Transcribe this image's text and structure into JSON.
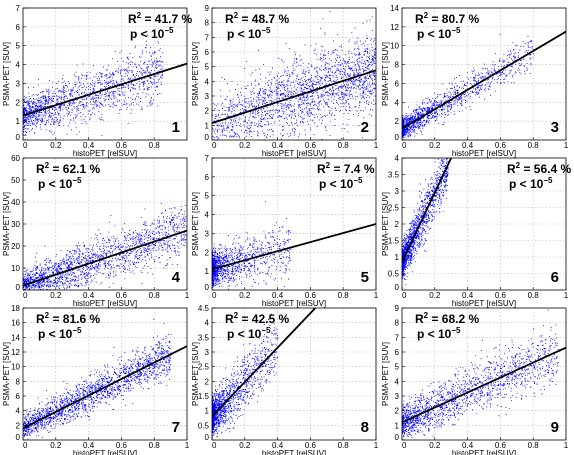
{
  "chart_data": [
    {
      "type": "scatter",
      "panel_label": "1",
      "r2_text": "41.7 %",
      "p_text": "p < 10",
      "p_exp": "−5",
      "xlabel": "histoPET [relSUV]",
      "ylabel": "PSMA-PET [SUV]",
      "xlim": [
        0,
        1
      ],
      "ylim": [
        0,
        7
      ],
      "xticks": [
        0,
        0.2,
        0.4,
        0.6,
        0.8
      ],
      "yticks": [
        0,
        1,
        2,
        3,
        4,
        5,
        6,
        7
      ],
      "xtick_labels": [
        "0",
        "0.2",
        "0.4",
        "0.6",
        "0.8"
      ],
      "ytick_labels": [
        "0",
        "1",
        "2",
        "3",
        "4",
        "5",
        "6",
        "7"
      ],
      "fit": {
        "x": [
          0,
          1
        ],
        "y": [
          1.3,
          4.05
        ]
      },
      "cloud": {
        "x_max": 0.85,
        "x_shape": 1.5,
        "y_sd": 0.65,
        "n": 1500
      },
      "grid": true,
      "color": "#0000ff"
    },
    {
      "type": "scatter",
      "panel_label": "2",
      "r2_text": "48.7 %",
      "p_text": "p < 10",
      "p_exp": "−5",
      "xlabel": "histoPET [relSUV]",
      "ylabel": "PSMA-PET [SUV]",
      "xlim": [
        0,
        1
      ],
      "ylim": [
        0,
        9
      ],
      "xticks": [
        0,
        0.2,
        0.4,
        0.6,
        0.8,
        1
      ],
      "yticks": [
        0,
        1,
        2,
        3,
        4,
        5,
        6,
        7,
        8,
        9
      ],
      "xtick_labels": [
        "0",
        "0.2",
        "0.4",
        "0.6",
        "0.8",
        "1"
      ],
      "ytick_labels": [
        "0",
        "1",
        "2",
        "3",
        "4",
        "5",
        "6",
        "7",
        "8",
        "9"
      ],
      "fit": {
        "x": [
          0,
          1
        ],
        "y": [
          1.15,
          4.75
        ]
      },
      "cloud": {
        "x_max": 1.0,
        "x_shape": 0.75,
        "y_sd": 1.2,
        "n": 2000
      },
      "grid": true,
      "color": "#0000ff"
    },
    {
      "type": "scatter",
      "panel_label": "3",
      "r2_text": "80.7 %",
      "p_text": "p < 10",
      "p_exp": "−5",
      "xlabel": "histoPET [relSUV]",
      "ylabel": "PSMA-PET [SUV]",
      "xlim": [
        0,
        1
      ],
      "ylim": [
        0,
        14
      ],
      "xticks": [
        0,
        0.2,
        0.4,
        0.6,
        0.8,
        1
      ],
      "yticks": [
        0,
        2,
        4,
        6,
        8,
        10,
        12,
        14
      ],
      "xtick_labels": [
        "0",
        "0.2",
        "0.4",
        "0.6",
        "0.8",
        "1"
      ],
      "ytick_labels": [
        "0",
        "2",
        "4",
        "6",
        "8",
        "10",
        "12",
        "14"
      ],
      "fit": {
        "x": [
          0,
          1
        ],
        "y": [
          1.2,
          11.5
        ]
      },
      "cloud": {
        "x_max": 0.8,
        "x_shape": 2.6,
        "y_sd": 0.8,
        "n": 1500
      },
      "grid": true,
      "color": "#0000ff"
    },
    {
      "type": "scatter",
      "panel_label": "4",
      "r2_text": "62.1 %",
      "p_text": "p < 10",
      "p_exp": "−5",
      "xlabel": "histoPET [relSUV]",
      "ylabel": "PSMA-PET [SUV]",
      "xlim": [
        0,
        1
      ],
      "ylim": [
        0,
        60
      ],
      "xticks": [
        0,
        0.2,
        0.4,
        0.6,
        0.8,
        1
      ],
      "yticks": [
        0,
        10,
        20,
        30,
        40,
        50,
        60
      ],
      "xtick_labels": [
        "0",
        "0.2",
        "0.4",
        "0.6",
        "0.8",
        "1"
      ],
      "ytick_labels": [
        "0",
        "10",
        "20",
        "30",
        "40",
        "50",
        "60"
      ],
      "fit": {
        "x": [
          0,
          1
        ],
        "y": [
          2,
          27
        ]
      },
      "cloud": {
        "x_max": 1.0,
        "x_shape": 1.2,
        "y_sd": 5,
        "n": 1800
      },
      "grid": true,
      "color": "#0000ff"
    },
    {
      "type": "scatter",
      "panel_label": "5",
      "r2_text": "7.4 %",
      "p_text": "p < 10",
      "p_exp": "−5",
      "xlabel": "histoPET [relSUV]",
      "ylabel": "PSMA-PET [SUV]",
      "xlim": [
        0,
        1
      ],
      "ylim": [
        0,
        7
      ],
      "xticks": [
        0,
        0.2,
        0.4,
        0.6,
        0.8,
        1
      ],
      "yticks": [
        0,
        1,
        2,
        3,
        4,
        5,
        6,
        7
      ],
      "xtick_labels": [
        "0",
        "0.2",
        "0.4",
        "0.6",
        "0.8",
        "1"
      ],
      "ytick_labels": [
        "0",
        "1",
        "2",
        "3",
        "4",
        "5",
        "6",
        "7"
      ],
      "fit": {
        "x": [
          0,
          1
        ],
        "y": [
          1.1,
          3.5
        ]
      },
      "cloud": {
        "x_max": 0.48,
        "x_shape": 3.5,
        "y_sd": 0.6,
        "n": 1500
      },
      "grid": true,
      "color": "#0000ff"
    },
    {
      "type": "scatter",
      "panel_label": "6",
      "r2_text": "56.4 %",
      "p_text": "p < 10",
      "p_exp": "−5",
      "xlabel": "histoPET [relSUV]",
      "ylabel": "PSMA-PET [SUV]",
      "xlim": [
        0,
        1
      ],
      "ylim": [
        0,
        4
      ],
      "xticks": [
        0,
        0.2,
        0.4,
        0.6,
        0.8,
        1
      ],
      "yticks": [
        0,
        0.5,
        1,
        1.5,
        2,
        2.5,
        3,
        3.5,
        4
      ],
      "xtick_labels": [
        "0",
        "0.2",
        "0.4",
        "0.6",
        "0.8",
        "1"
      ],
      "ytick_labels": [
        "0",
        "0.5",
        "1",
        "1.5",
        "2",
        "2.5",
        "3",
        "3.5",
        "4"
      ],
      "fit": {
        "x": [
          0,
          0.3
        ],
        "y": [
          0.85,
          4
        ]
      },
      "cloud": {
        "x_max": 0.28,
        "x_shape": 1.8,
        "y_sd": 0.35,
        "n": 1500
      },
      "grid": true,
      "color": "#0000ff"
    },
    {
      "type": "scatter",
      "panel_label": "7",
      "r2_text": "81.6 %",
      "p_text": "p < 10",
      "p_exp": "−5",
      "xlabel": "histoPET [relSUV]",
      "ylabel": "PSMA-PET [SUV]",
      "xlim": [
        0,
        1
      ],
      "ylim": [
        0,
        18
      ],
      "xticks": [
        0,
        0.2,
        0.4,
        0.6,
        0.8,
        1
      ],
      "yticks": [
        0,
        2,
        4,
        6,
        8,
        10,
        12,
        14,
        16,
        18
      ],
      "xtick_labels": [
        "0",
        "0.2",
        "0.4",
        "0.6",
        "0.8",
        "1"
      ],
      "ytick_labels": [
        "0",
        "2",
        "4",
        "6",
        "8",
        "10",
        "12",
        "14",
        "16",
        "18"
      ],
      "fit": {
        "x": [
          0,
          1
        ],
        "y": [
          1.6,
          12.8
        ]
      },
      "cloud": {
        "x_max": 0.9,
        "x_shape": 1.1,
        "y_sd": 1.2,
        "n": 1800
      },
      "grid": true,
      "color": "#0000ff"
    },
    {
      "type": "scatter",
      "panel_label": "8",
      "r2_text": "42.5 %",
      "p_text": "p < 10",
      "p_exp": "−5",
      "xlabel": "histoPET [relSUV]",
      "ylabel": "PSMA-PET [SUV]",
      "xlim": [
        0,
        1
      ],
      "ylim": [
        0,
        4.5
      ],
      "xticks": [
        0,
        0.2,
        0.4,
        0.6,
        0.8,
        1
      ],
      "yticks": [
        0,
        0.5,
        1,
        1.5,
        2,
        2.5,
        3,
        3.5,
        4,
        4.5
      ],
      "xtick_labels": [
        "0",
        "0.2",
        "0.4",
        "0.6",
        "0.8",
        "1"
      ],
      "ytick_labels": [
        "0",
        "0.5",
        "1",
        "1.5",
        "2",
        "2.5",
        "3",
        "3.5",
        "4",
        "4.5"
      ],
      "fit": {
        "x": [
          0,
          0.63
        ],
        "y": [
          0.8,
          4.5
        ]
      },
      "cloud": {
        "x_max": 0.4,
        "x_shape": 3.0,
        "y_sd": 0.45,
        "n": 1600
      },
      "grid": true,
      "color": "#0000ff"
    },
    {
      "type": "scatter",
      "panel_label": "9",
      "r2_text": "68.2 %",
      "p_text": "p < 10",
      "p_exp": "−5",
      "xlabel": "histoPET [relSUV]",
      "ylabel": "PSMA-PET [SUV]",
      "xlim": [
        0,
        1
      ],
      "ylim": [
        0,
        9
      ],
      "xticks": [
        0,
        0.2,
        0.4,
        0.6,
        0.8,
        1
      ],
      "yticks": [
        0,
        1,
        2,
        3,
        4,
        5,
        6,
        7,
        8,
        9
      ],
      "xtick_labels": [
        "0",
        "0.2",
        "0.4",
        "0.6",
        "0.8",
        "1"
      ],
      "ytick_labels": [
        "0",
        "1",
        "2",
        "3",
        "4",
        "5",
        "6",
        "7",
        "8",
        "9"
      ],
      "fit": {
        "x": [
          0,
          1
        ],
        "y": [
          1.2,
          6.3
        ]
      },
      "cloud": {
        "x_max": 0.95,
        "x_shape": 1.5,
        "y_sd": 0.8,
        "n": 1600
      },
      "grid": true,
      "color": "#0000ff"
    }
  ]
}
